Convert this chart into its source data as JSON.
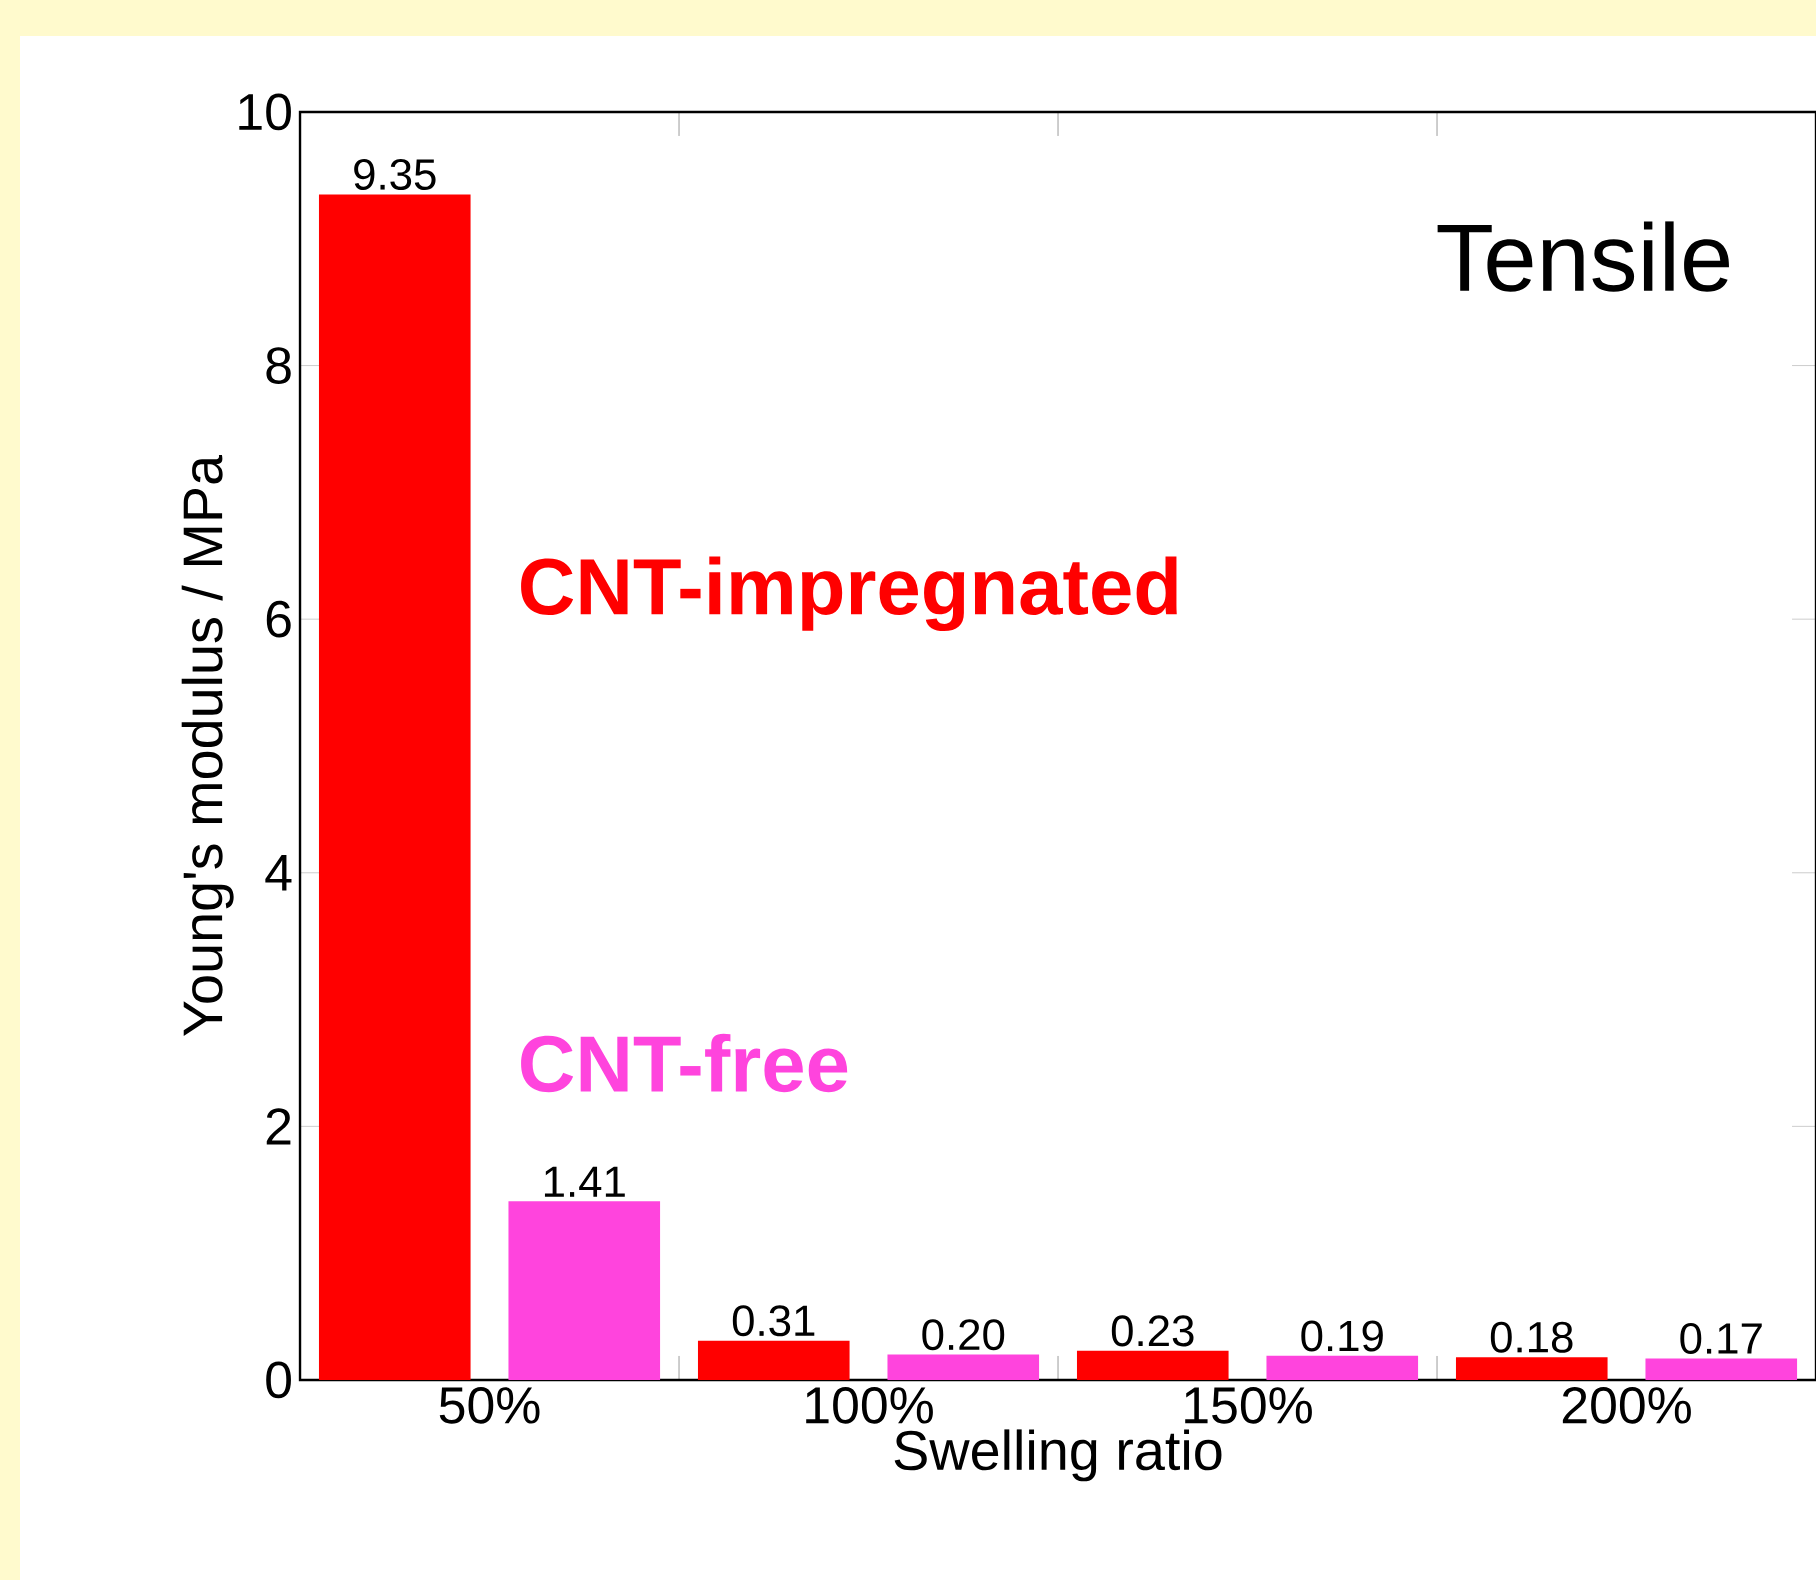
{
  "chart_data": {
    "type": "bar",
    "xlabel": "Swelling ratio",
    "ylabel": "Young's modulus / MPa",
    "categories": [
      "50%",
      "100%",
      "150%",
      "200%"
    ],
    "series": [
      {
        "name": "CNT-impregnated",
        "color": "#ff0000",
        "values": [
          9.35,
          0.31,
          0.23,
          0.18
        ],
        "value_labels": [
          "9.35",
          "0.31",
          "0.23",
          "0.18"
        ]
      },
      {
        "name": "CNT-free",
        "color": "#ff44dd",
        "values": [
          1.41,
          0.2,
          0.19,
          0.17
        ],
        "value_labels": [
          "1.41",
          "0.20",
          "0.19",
          "0.17"
        ]
      }
    ],
    "ylim": [
      0,
      10
    ],
    "yticks": [
      0,
      2,
      4,
      6,
      8,
      10
    ],
    "annotations": [
      "Tensile"
    ]
  }
}
